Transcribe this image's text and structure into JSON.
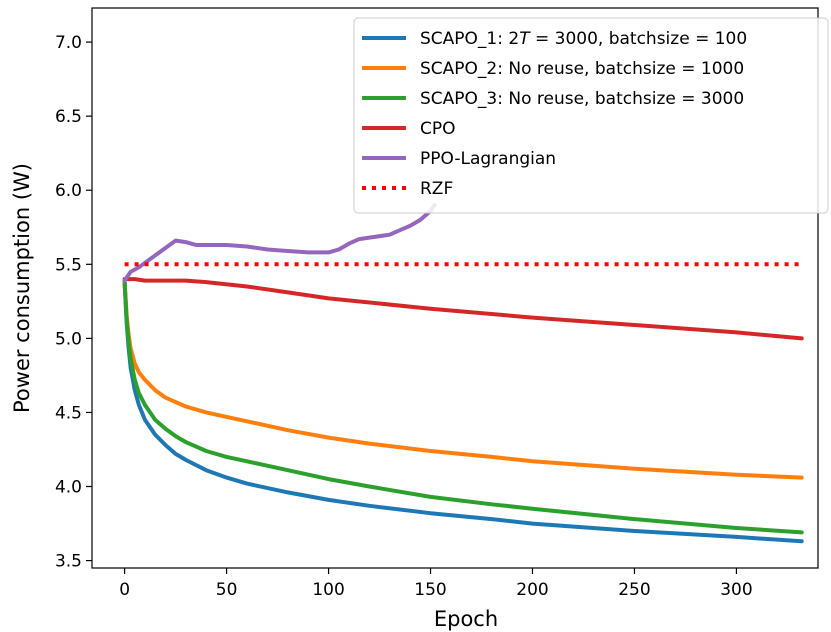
{
  "chart_data": {
    "type": "line",
    "title": "",
    "xlabel": "Epoch",
    "ylabel": "Power consumption (W)",
    "xlim": [
      -16,
      340
    ],
    "ylim": [
      3.45,
      7.23
    ],
    "xticks": [
      0,
      50,
      100,
      150,
      200,
      250,
      300
    ],
    "yticks": [
      3.5,
      4.0,
      4.5,
      5.0,
      5.5,
      6.0,
      6.5,
      7.0
    ],
    "xtick_labels": [
      "0",
      "50",
      "100",
      "150",
      "200",
      "250",
      "300"
    ],
    "ytick_labels": [
      "3.5",
      "4.0",
      "4.5",
      "5.0",
      "5.5",
      "6.0",
      "6.5",
      "7.0"
    ],
    "grid": false,
    "legend_position": "upper right",
    "series": [
      {
        "name": "SCAPO_1: 2T = 3000, batchsize = 100",
        "legend_parts": [
          "SCAPO_1: 2",
          "T",
          " = 3000, batchsize = 100"
        ],
        "color": "#1f77b4",
        "style": "solid",
        "x": [
          0,
          1,
          2,
          3,
          5,
          7,
          10,
          15,
          20,
          25,
          30,
          40,
          50,
          60,
          80,
          100,
          120,
          150,
          180,
          200,
          250,
          300,
          332
        ],
        "y": [
          5.38,
          5.1,
          4.93,
          4.8,
          4.65,
          4.55,
          4.45,
          4.35,
          4.28,
          4.22,
          4.18,
          4.11,
          4.06,
          4.02,
          3.96,
          3.91,
          3.87,
          3.82,
          3.78,
          3.75,
          3.7,
          3.66,
          3.63
        ]
      },
      {
        "name": "SCAPO_2: No reuse, batchsize = 1000",
        "legend_parts": [
          "SCAPO_2: No reuse, batchsize = 1000"
        ],
        "color": "#ff7f0e",
        "style": "solid",
        "x": [
          0,
          1,
          2,
          3,
          5,
          7,
          10,
          15,
          20,
          25,
          30,
          40,
          50,
          60,
          80,
          100,
          120,
          150,
          180,
          200,
          250,
          300,
          332
        ],
        "y": [
          5.38,
          5.15,
          5.02,
          4.93,
          4.83,
          4.77,
          4.72,
          4.65,
          4.6,
          4.57,
          4.54,
          4.5,
          4.47,
          4.44,
          4.38,
          4.33,
          4.29,
          4.24,
          4.2,
          4.17,
          4.12,
          4.08,
          4.06
        ]
      },
      {
        "name": "SCAPO_3: No reuse, batchsize = 3000",
        "legend_parts": [
          "SCAPO_3: No reuse, batchsize = 3000"
        ],
        "color": "#2ca02c",
        "style": "solid",
        "x": [
          0,
          1,
          2,
          3,
          5,
          7,
          10,
          15,
          20,
          25,
          30,
          40,
          50,
          60,
          80,
          100,
          120,
          150,
          180,
          200,
          250,
          300,
          332
        ],
        "y": [
          5.38,
          5.12,
          4.97,
          4.86,
          4.72,
          4.63,
          4.55,
          4.45,
          4.39,
          4.34,
          4.3,
          4.24,
          4.2,
          4.17,
          4.11,
          4.05,
          4.0,
          3.93,
          3.88,
          3.85,
          3.78,
          3.72,
          3.69
        ]
      },
      {
        "name": "CPO",
        "legend_parts": [
          "CPO"
        ],
        "color": "#d62728",
        "style": "solid",
        "x": [
          0,
          5,
          10,
          20,
          30,
          40,
          60,
          80,
          100,
          150,
          200,
          250,
          300,
          332
        ],
        "y": [
          5.4,
          5.4,
          5.39,
          5.39,
          5.39,
          5.38,
          5.35,
          5.31,
          5.27,
          5.2,
          5.14,
          5.09,
          5.04,
          5.0
        ]
      },
      {
        "name": "PPO-Lagrangian",
        "legend_parts": [
          "PPO-Lagrangian"
        ],
        "color": "#9467bd",
        "style": "solid",
        "x": [
          0,
          3,
          7,
          10,
          15,
          20,
          25,
          30,
          35,
          40,
          45,
          50,
          60,
          70,
          80,
          90,
          100,
          105,
          110,
          115,
          120,
          130,
          135,
          140,
          145,
          150,
          152
        ],
        "y": [
          5.39,
          5.45,
          5.48,
          5.51,
          5.56,
          5.61,
          5.66,
          5.65,
          5.63,
          5.63,
          5.63,
          5.63,
          5.62,
          5.6,
          5.59,
          5.58,
          5.58,
          5.6,
          5.64,
          5.67,
          5.68,
          5.7,
          5.73,
          5.76,
          5.8,
          5.86,
          5.9
        ]
      },
      {
        "name": "RZF",
        "legend_parts": [
          "RZF"
        ],
        "color": "#ff0000",
        "style": "dotted",
        "x": [
          0,
          332
        ],
        "y": [
          5.5,
          5.5
        ]
      }
    ]
  }
}
